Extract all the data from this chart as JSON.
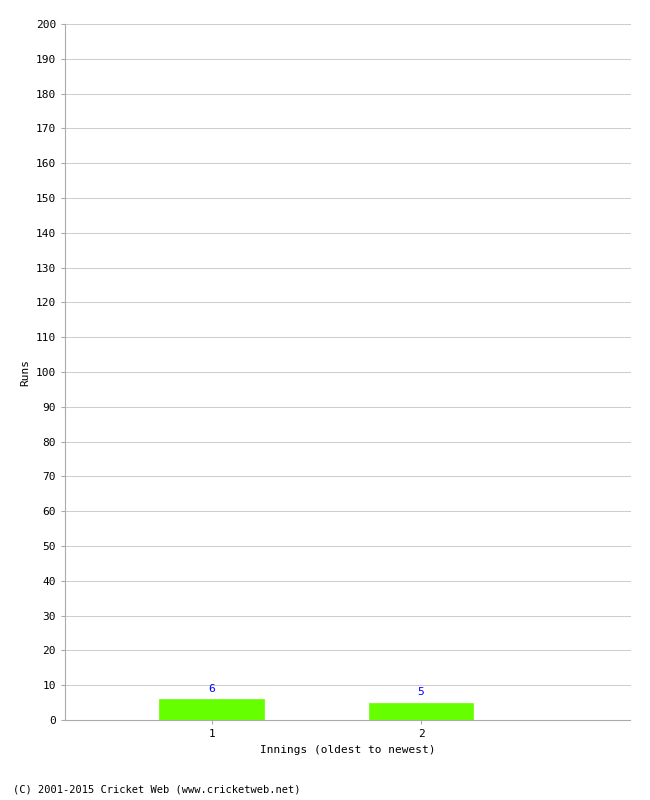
{
  "innings": [
    1,
    2
  ],
  "runs": [
    6,
    5
  ],
  "bar_color": "#66ff00",
  "bar_edge_color": "#66ff00",
  "ylim": [
    0,
    200
  ],
  "yticks": [
    0,
    10,
    20,
    30,
    40,
    50,
    60,
    70,
    80,
    90,
    100,
    110,
    120,
    130,
    140,
    150,
    160,
    170,
    180,
    190,
    200
  ],
  "ylabel": "Runs",
  "xlabel": "Innings (oldest to newest)",
  "value_label_color": "blue",
  "grid_color": "#cccccc",
  "background_color": "#ffffff",
  "footer": "(C) 2001-2015 Cricket Web (www.cricketweb.net)",
  "bar_width": 0.5,
  "xlim": [
    0.3,
    3.0
  ]
}
